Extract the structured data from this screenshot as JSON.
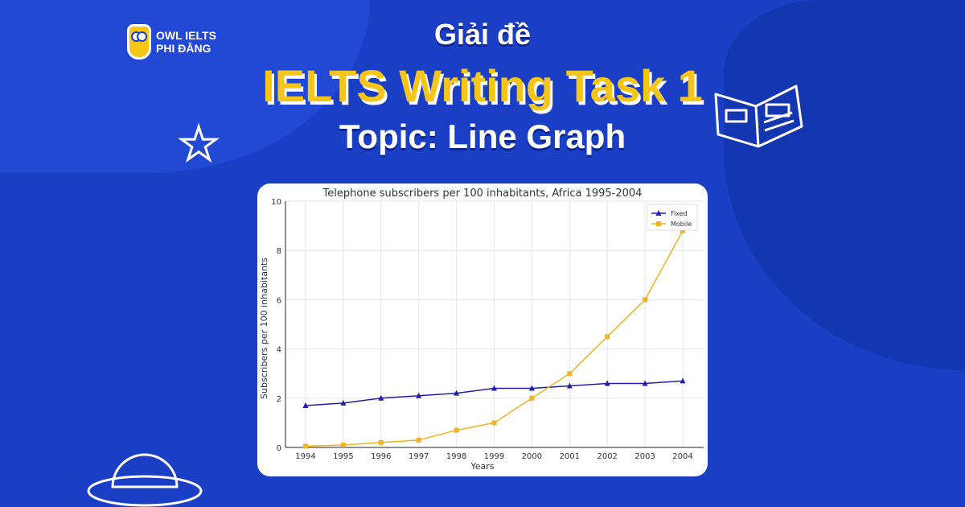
{
  "branding": {
    "logo_line1": "OWL IELTS",
    "logo_line2": "PHI ĐẰNG"
  },
  "header": {
    "line1": "Giải đề",
    "line2": "IELTS Writing Task 1",
    "line3": "Topic: Line Graph"
  },
  "colors": {
    "background": "#1a3fc4",
    "accent": "#f5c518",
    "fixed": "#1f1fa8",
    "mobile": "#f0b323"
  },
  "chart_data": {
    "type": "line",
    "title": "Telephone subscribers per 100 inhabitants, Africa 1995-2004",
    "xlabel": "Years",
    "ylabel": "Subscribers per 100 inhabitants",
    "categories": [
      "1994",
      "1995",
      "1996",
      "1997",
      "1998",
      "1999",
      "2000",
      "2001",
      "2002",
      "2003",
      "2004"
    ],
    "ylim": [
      0,
      10
    ],
    "yticks": [
      "0",
      "2",
      "4",
      "6",
      "8",
      "10"
    ],
    "grid": true,
    "legend": "top-right",
    "series": [
      {
        "name": "Fixed",
        "marker": "triangle",
        "color": "#1f1fa8",
        "values": [
          1.7,
          1.8,
          2.0,
          2.1,
          2.2,
          2.4,
          2.4,
          2.5,
          2.6,
          2.6,
          2.7
        ]
      },
      {
        "name": "Mobile",
        "marker": "square",
        "color": "#f0b323",
        "values": [
          0.05,
          0.1,
          0.2,
          0.3,
          0.7,
          1.0,
          2.0,
          3.0,
          4.5,
          6.0,
          8.8
        ]
      }
    ]
  }
}
